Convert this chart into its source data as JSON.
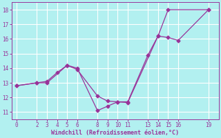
{
  "xlabel": "Windchill (Refroidissement éolien,°C)",
  "bg_color": "#b2f0f0",
  "line_color": "#993399",
  "grid_color": "#ffffff",
  "xlim": [
    -0.5,
    20
  ],
  "ylim": [
    10.5,
    18.5
  ],
  "xticks": [
    0,
    2,
    3,
    4,
    5,
    6,
    8,
    9,
    10,
    11,
    13,
    14,
    15,
    16,
    19
  ],
  "yticks": [
    11,
    12,
    13,
    14,
    15,
    16,
    17,
    18
  ],
  "line1_x": [
    0,
    2,
    3,
    4,
    5,
    6,
    8,
    9,
    10,
    11,
    13,
    14,
    15,
    16,
    19
  ],
  "line1_y": [
    12.8,
    13.0,
    13.1,
    13.7,
    14.2,
    14.0,
    11.1,
    11.4,
    11.7,
    11.7,
    14.9,
    16.2,
    16.1,
    15.9,
    18.0
  ],
  "line2_x": [
    0,
    2,
    3,
    5,
    6,
    8,
    9,
    10,
    11,
    14,
    15,
    19
  ],
  "line2_y": [
    12.8,
    13.0,
    13.0,
    14.2,
    13.9,
    12.1,
    11.75,
    11.7,
    11.65,
    16.2,
    18.0,
    18.0
  ]
}
